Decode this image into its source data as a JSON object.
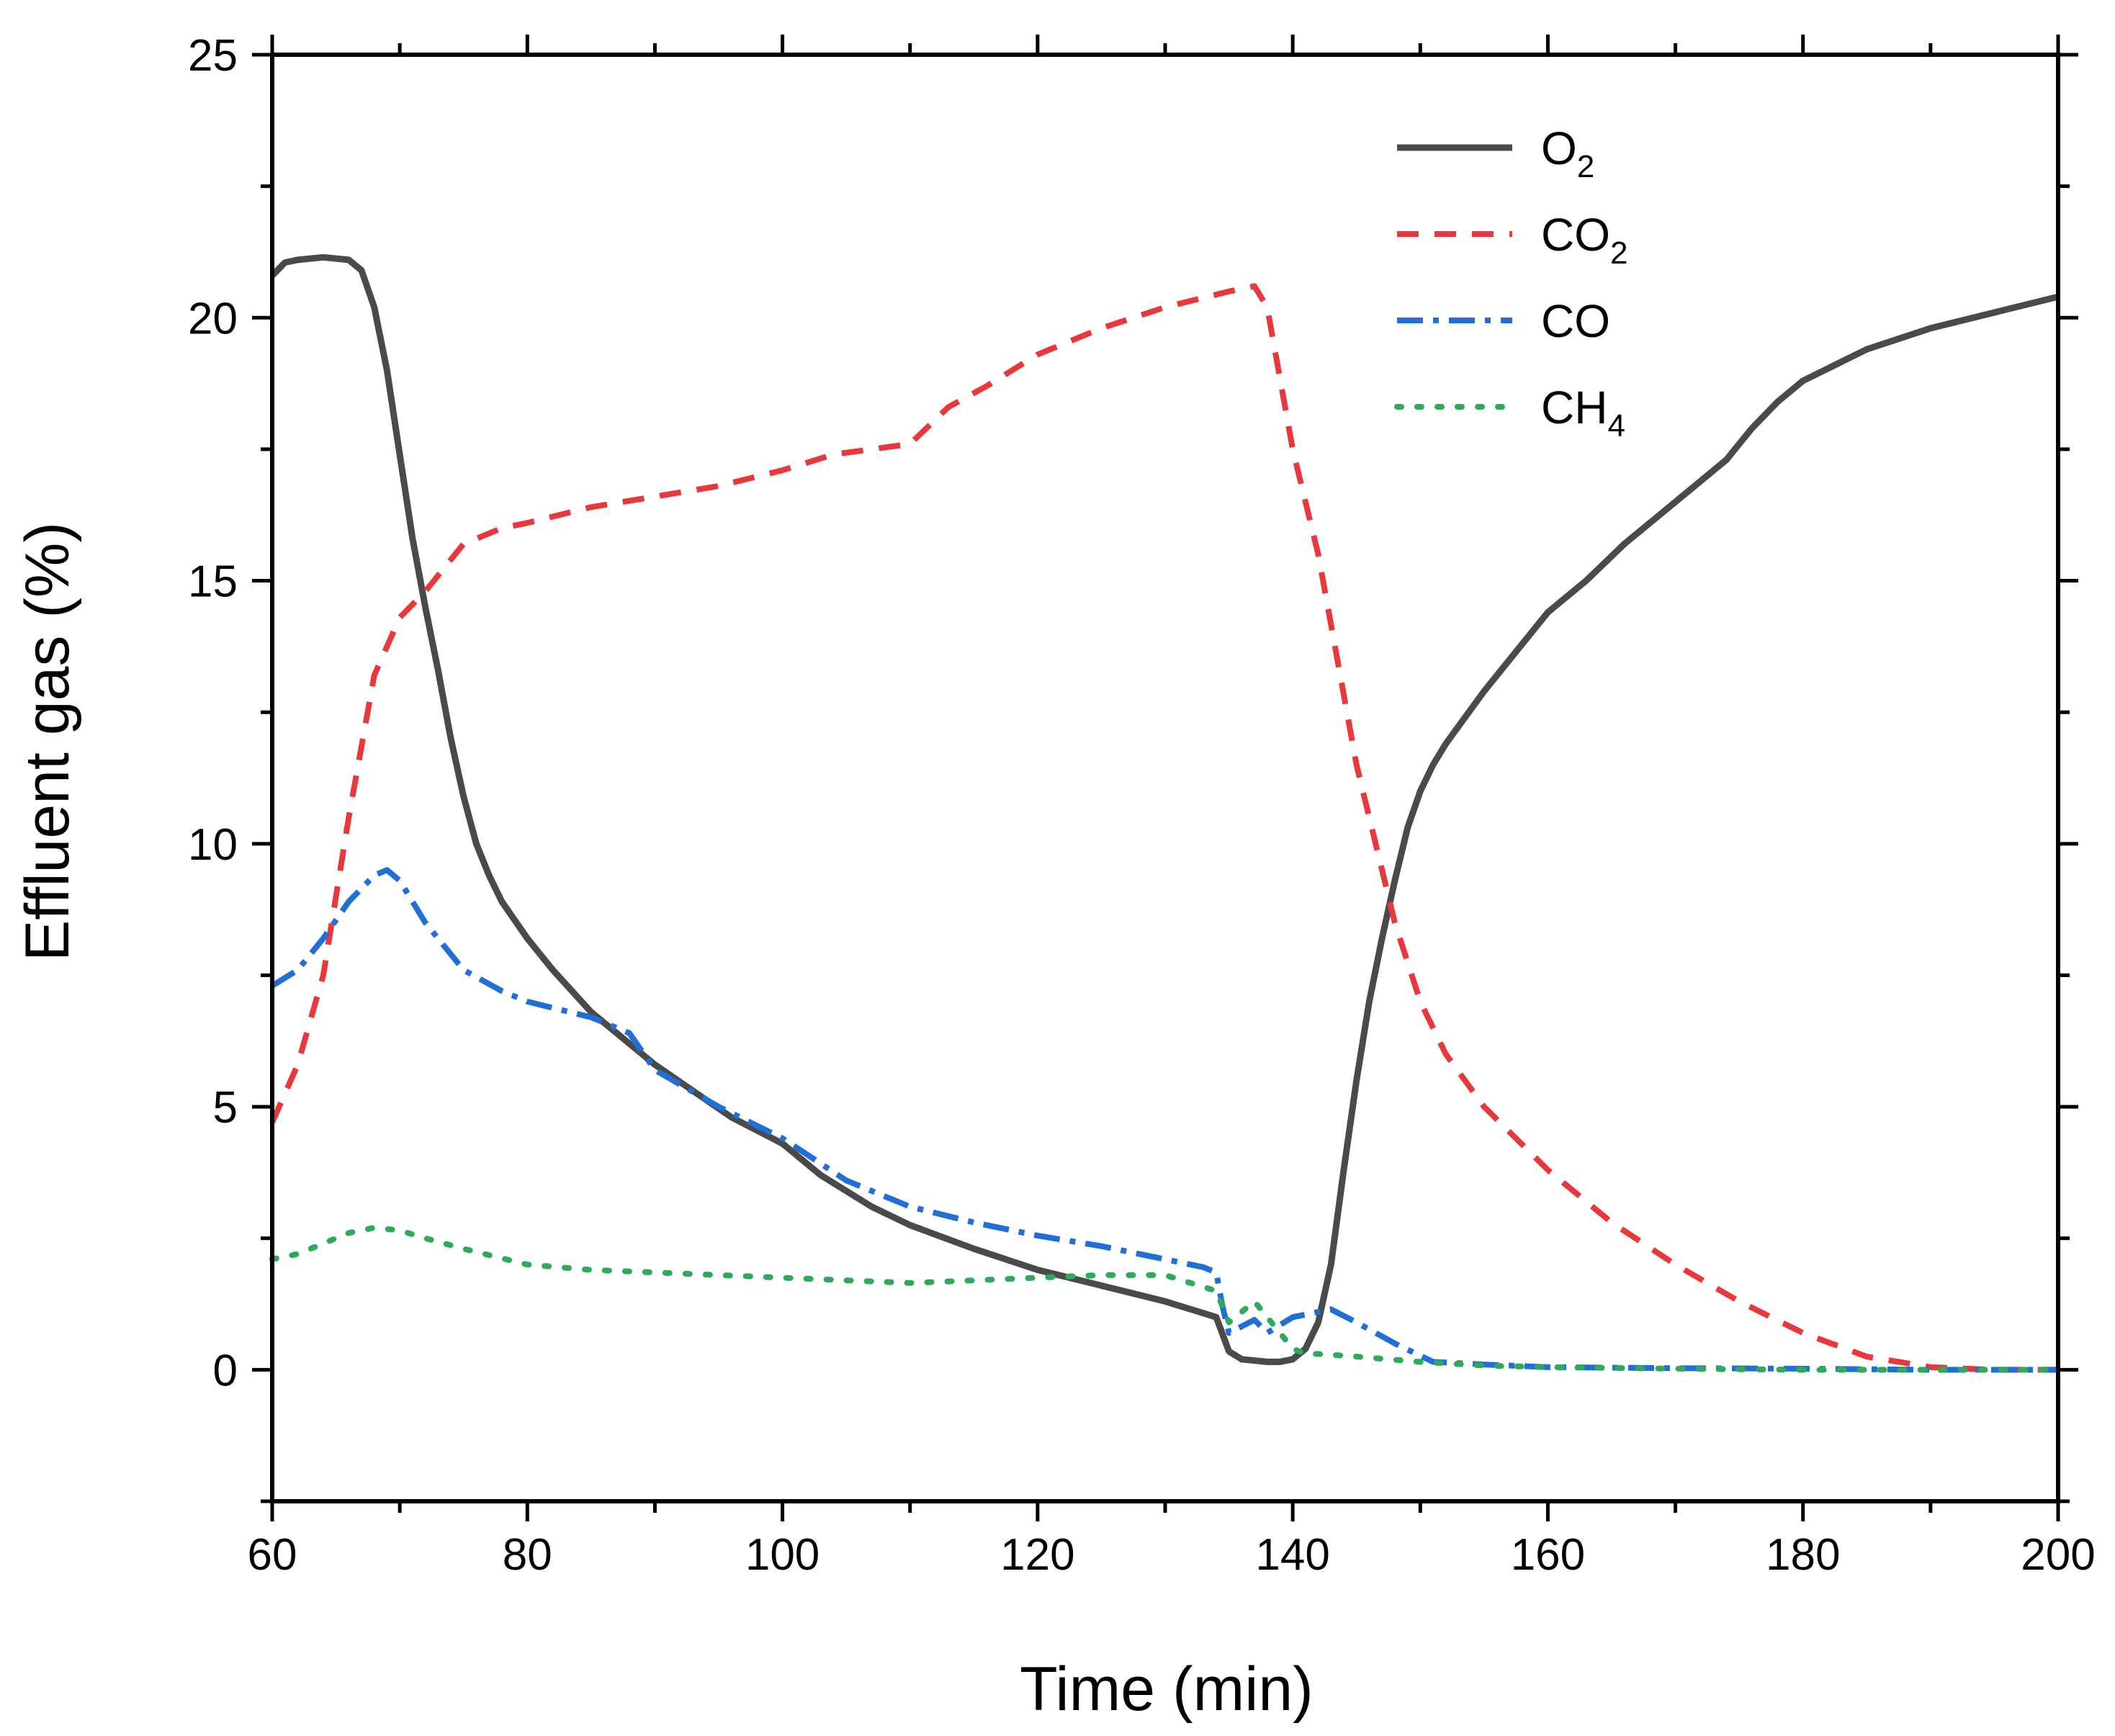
{
  "chart_data": {
    "type": "line",
    "xlabel": "Time (min)",
    "ylabel": "Effluent gas (%)",
    "xlim": [
      60,
      200
    ],
    "ylim": [
      -2.5,
      25
    ],
    "x_ticks": [
      60,
      80,
      100,
      120,
      140,
      160,
      180,
      200
    ],
    "y_ticks": [
      0,
      5,
      10,
      15,
      20,
      25
    ],
    "legend_position": "top-right",
    "series": [
      {
        "name": "O2",
        "legend_main": "O",
        "legend_sub": "2",
        "color": "#4a4a4a",
        "style": "solid",
        "x": [
          60,
          61,
          62,
          64,
          66,
          67,
          68,
          69,
          70,
          71,
          72,
          73,
          74,
          75,
          76,
          77,
          78,
          80,
          82,
          85,
          88,
          90,
          93,
          96,
          100,
          103,
          107,
          110,
          115,
          120,
          125,
          130,
          134,
          135,
          136,
          138,
          139,
          140,
          141,
          142,
          143,
          144,
          145,
          146,
          147,
          148,
          149,
          150,
          151,
          152,
          155,
          158,
          160,
          163,
          166,
          170,
          174,
          176,
          178,
          180,
          185,
          190,
          195,
          200
        ],
        "y": [
          20.8,
          21.05,
          21.1,
          21.15,
          21.1,
          20.9,
          20.2,
          19.0,
          17.4,
          15.8,
          14.5,
          13.3,
          12.0,
          10.9,
          10.0,
          9.4,
          8.9,
          8.2,
          7.6,
          6.8,
          6.2,
          5.8,
          5.3,
          4.8,
          4.3,
          3.7,
          3.1,
          2.75,
          2.3,
          1.9,
          1.6,
          1.3,
          1.0,
          0.35,
          0.2,
          0.15,
          0.15,
          0.2,
          0.4,
          0.9,
          2.0,
          3.8,
          5.5,
          7.0,
          8.2,
          9.3,
          10.3,
          11.0,
          11.5,
          11.9,
          12.9,
          13.8,
          14.4,
          15.0,
          15.7,
          16.5,
          17.3,
          17.9,
          18.4,
          18.8,
          19.4,
          19.8,
          20.1,
          20.4
        ]
      },
      {
        "name": "CO2",
        "legend_main": "CO",
        "legend_sub": "2",
        "color": "#e8383c",
        "style": "dashed",
        "x": [
          60,
          62,
          64,
          66,
          68,
          70,
          72,
          75,
          78,
          80,
          85,
          90,
          95,
          100,
          104,
          107,
          110,
          113,
          116,
          120,
          125,
          130,
          135,
          137,
          138,
          140,
          142,
          145,
          148,
          150,
          152,
          155,
          160,
          165,
          170,
          175,
          180,
          185,
          190,
          195,
          200
        ],
        "y": [
          4.7,
          5.8,
          7.5,
          10.5,
          13.2,
          14.3,
          14.8,
          15.7,
          16.0,
          16.1,
          16.4,
          16.6,
          16.8,
          17.1,
          17.4,
          17.5,
          17.6,
          18.3,
          18.7,
          19.3,
          19.8,
          20.2,
          20.5,
          20.6,
          20.2,
          17.5,
          15.5,
          11.5,
          8.5,
          7.0,
          6.0,
          5.0,
          3.8,
          2.8,
          2.0,
          1.3,
          0.7,
          0.25,
          0.05,
          0.0,
          0.0
        ]
      },
      {
        "name": "CO",
        "legend_main": "CO",
        "legend_sub": "",
        "color": "#1f6fd6",
        "style": "dashdot",
        "x": [
          60,
          62,
          64,
          66,
          68,
          69,
          70,
          72,
          75,
          78,
          80,
          85,
          88,
          90,
          95,
          100,
          105,
          110,
          115,
          120,
          125,
          130,
          133,
          134,
          134.5,
          135,
          137,
          138,
          140,
          142,
          143,
          145,
          148,
          151,
          155,
          160,
          170,
          180,
          190,
          200
        ],
        "y": [
          7.3,
          7.6,
          8.2,
          8.9,
          9.4,
          9.5,
          9.3,
          8.5,
          7.6,
          7.2,
          7.0,
          6.7,
          6.4,
          5.7,
          5.0,
          4.4,
          3.6,
          3.1,
          2.8,
          2.55,
          2.35,
          2.1,
          1.95,
          1.85,
          1.2,
          0.7,
          0.95,
          0.7,
          1.0,
          1.1,
          1.15,
          0.9,
          0.5,
          0.15,
          0.1,
          0.05,
          0.03,
          0.02,
          0.0,
          0.0
        ]
      },
      {
        "name": "CH4",
        "legend_main": "CH",
        "legend_sub": "4",
        "color": "#2eaa5a",
        "style": "dotted",
        "x": [
          60,
          62,
          64,
          66,
          68,
          70,
          72,
          75,
          80,
          85,
          90,
          95,
          100,
          105,
          110,
          115,
          120,
          125,
          130,
          134,
          135,
          136,
          137,
          138,
          139,
          140,
          141,
          142,
          145,
          150,
          155,
          160,
          170,
          180,
          190,
          200
        ],
        "y": [
          2.1,
          2.2,
          2.4,
          2.6,
          2.7,
          2.65,
          2.5,
          2.3,
          2.0,
          1.9,
          1.85,
          1.8,
          1.75,
          1.7,
          1.65,
          1.7,
          1.75,
          1.8,
          1.8,
          1.5,
          0.9,
          1.1,
          1.3,
          1.0,
          0.7,
          0.4,
          0.3,
          0.3,
          0.25,
          0.15,
          0.08,
          0.05,
          0.02,
          0.0,
          0.0,
          0.0
        ]
      }
    ]
  }
}
